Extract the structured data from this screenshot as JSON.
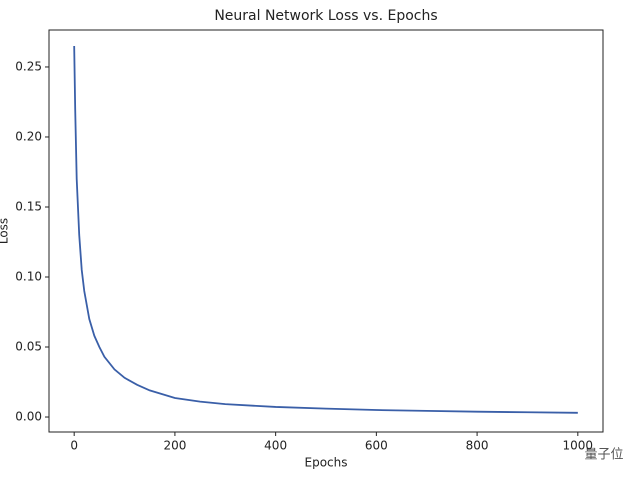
{
  "chart_data": {
    "type": "line",
    "title": "Neural Network Loss vs. Epochs",
    "x_label": "Epochs",
    "y_label": "Loss",
    "series": [
      {
        "name": "Loss",
        "color": "#3a5fa8",
        "x": [
          0,
          2,
          5,
          10,
          15,
          20,
          30,
          40,
          50,
          60,
          80,
          100,
          125,
          150,
          200,
          250,
          300,
          400,
          500,
          600,
          700,
          800,
          900,
          1000
        ],
        "values": [
          0.265,
          0.22,
          0.17,
          0.13,
          0.105,
          0.09,
          0.07,
          0.058,
          0.05,
          0.043,
          0.034,
          0.028,
          0.023,
          0.019,
          0.0136,
          0.011,
          0.0092,
          0.0072,
          0.006,
          0.005,
          0.0044,
          0.0038,
          0.0034,
          0.003
        ]
      }
    ],
    "xlim": [
      -50,
      1050
    ],
    "ylim": [
      -0.0107,
      0.2764
    ],
    "xticks": [
      0,
      200,
      400,
      600,
      800,
      1000
    ],
    "yticks": [
      {
        "value": 0,
        "label": "0.00"
      },
      {
        "value": 0.05,
        "label": "0.05"
      },
      {
        "value": 0.1,
        "label": "0.10"
      },
      {
        "value": 0.15,
        "label": "0.15"
      },
      {
        "value": 0.2,
        "label": "0.20"
      },
      {
        "value": 0.25,
        "label": "0.25"
      }
    ],
    "grid": false
  },
  "watermark": "量子位"
}
